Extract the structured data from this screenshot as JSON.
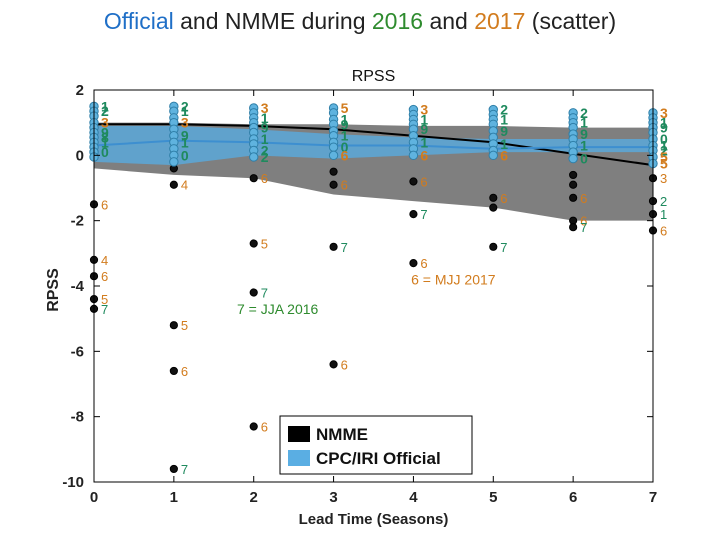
{
  "title": {
    "part1": "Official",
    "part2": " and NMME during ",
    "part3": "2016",
    "part4": " and ",
    "part5": "2017",
    "part6": " (scatter)",
    "colors": {
      "official": "#1f6fc7",
      "y2016": "#2e8b2e",
      "y2017": "#d27c1e",
      "text": "#222222"
    }
  },
  "chart_data": {
    "type": "scatter",
    "title": "RPSS",
    "xlabel": "Lead Time (Seasons)",
    "ylabel": "RPSS",
    "xlim": [
      0,
      7
    ],
    "ylim": [
      -10,
      2
    ],
    "xticks": [
      0,
      1,
      2,
      3,
      4,
      5,
      6,
      7
    ],
    "yticks": [
      -10,
      -8,
      -6,
      -4,
      -2,
      0,
      2
    ],
    "grid": false,
    "legend": {
      "position": "bottom-right",
      "entries": [
        {
          "label": "NMME",
          "color": "#000000"
        },
        {
          "label": "CPC/IRI Official",
          "color": "#5aaee3"
        }
      ]
    },
    "nmme_band": {
      "x": [
        0,
        1,
        2,
        3,
        4,
        5,
        6,
        7
      ],
      "upper": [
        1.0,
        1.0,
        0.95,
        0.95,
        0.9,
        0.9,
        0.85,
        0.85
      ],
      "lower": [
        -0.4,
        -0.6,
        -0.7,
        -1.2,
        -1.4,
        -1.6,
        -2.0,
        -2.0
      ]
    },
    "nmme_median": {
      "x": [
        0,
        1,
        2,
        3,
        4,
        5,
        6,
        7
      ],
      "y": [
        0.95,
        0.95,
        0.9,
        0.8,
        0.6,
        0.4,
        0.05,
        -0.3
      ]
    },
    "official_band": {
      "x": [
        0,
        1,
        2,
        3,
        4,
        5,
        6,
        7
      ],
      "upper": [
        0.9,
        0.9,
        0.8,
        0.65,
        0.55,
        0.5,
        0.5,
        0.5
      ],
      "lower": [
        -0.2,
        -0.3,
        0,
        -0.1,
        0,
        0.1,
        0.1,
        0.1
      ]
    },
    "official_median": {
      "x": [
        0,
        1,
        2,
        3,
        4,
        5,
        6,
        7
      ],
      "y": [
        0.3,
        0.45,
        0.4,
        0.3,
        0.3,
        0.2,
        0.25,
        0.25
      ]
    },
    "series": [
      {
        "name": "NMME",
        "color": "#111111",
        "points": [
          {
            "x": 0,
            "y": -3.2,
            "label": "4"
          },
          {
            "x": 0,
            "y": -3.7,
            "label": "6"
          },
          {
            "x": 0,
            "y": -4.4,
            "label": "5"
          },
          {
            "x": 0,
            "y": -4.7,
            "label": "7"
          },
          {
            "x": 0,
            "y": -1.5,
            "label": "6"
          },
          {
            "x": 1,
            "y": -0.4,
            "label": ""
          },
          {
            "x": 1,
            "y": -0.9,
            "label": "4"
          },
          {
            "x": 1,
            "y": -5.2,
            "label": "5"
          },
          {
            "x": 1,
            "y": -6.6,
            "label": "6"
          },
          {
            "x": 1,
            "y": -9.6,
            "label": "7"
          },
          {
            "x": 2,
            "y": -0.7,
            "label": "6"
          },
          {
            "x": 2,
            "y": -2.7,
            "label": "5"
          },
          {
            "x": 2,
            "y": -4.2,
            "label": "7"
          },
          {
            "x": 2,
            "y": -8.3,
            "label": "6"
          },
          {
            "x": 3,
            "y": -0.5,
            "label": ""
          },
          {
            "x": 3,
            "y": -0.9,
            "label": "6"
          },
          {
            "x": 3,
            "y": -2.8,
            "label": "7"
          },
          {
            "x": 3,
            "y": -6.4,
            "label": "6"
          },
          {
            "x": 4,
            "y": -0.8,
            "label": "6"
          },
          {
            "x": 4,
            "y": -1.8,
            "label": "7"
          },
          {
            "x": 4,
            "y": -3.3,
            "label": "6"
          },
          {
            "x": 5,
            "y": -1.3,
            "label": "6"
          },
          {
            "x": 5,
            "y": -1.6,
            "label": ""
          },
          {
            "x": 5,
            "y": -2.8,
            "label": "7"
          },
          {
            "x": 6,
            "y": -0.6,
            "label": ""
          },
          {
            "x": 6,
            "y": -0.9,
            "label": ""
          },
          {
            "x": 6,
            "y": -1.3,
            "label": "6"
          },
          {
            "x": 6,
            "y": -2.0,
            "label": "6"
          },
          {
            "x": 6,
            "y": -2.2,
            "label": "7"
          },
          {
            "x": 7,
            "y": -0.7,
            "label": "3"
          },
          {
            "x": 7,
            "y": -1.4,
            "label": "2"
          },
          {
            "x": 7,
            "y": -1.8,
            "label": "1"
          },
          {
            "x": 7,
            "y": -2.3,
            "label": "6"
          }
        ]
      },
      {
        "name": "CPC/IRI Official",
        "color": "#5fb3df",
        "points": [
          {
            "x": 0,
            "y": 1.5,
            "label": "1"
          },
          {
            "x": 0,
            "y": 1.35,
            "label": "2"
          },
          {
            "x": 0,
            "y": 1.2,
            "label": ""
          },
          {
            "x": 0,
            "y": 1.0,
            "label": "3"
          },
          {
            "x": 0,
            "y": 0.85,
            "label": ""
          },
          {
            "x": 0,
            "y": 0.7,
            "label": "9"
          },
          {
            "x": 0,
            "y": 0.55,
            "label": "8"
          },
          {
            "x": 0,
            "y": 0.4,
            "label": "1"
          },
          {
            "x": 0,
            "y": 0.25,
            "label": ""
          },
          {
            "x": 0,
            "y": 0.1,
            "label": "0"
          },
          {
            "x": 0,
            "y": -0.05,
            "label": ""
          },
          {
            "x": 1,
            "y": 1.5,
            "label": "2"
          },
          {
            "x": 1,
            "y": 1.35,
            "label": "1"
          },
          {
            "x": 1,
            "y": 1.15,
            "label": ""
          },
          {
            "x": 1,
            "y": 1.0,
            "label": "3"
          },
          {
            "x": 1,
            "y": 0.8,
            "label": ""
          },
          {
            "x": 1,
            "y": 0.6,
            "label": "9"
          },
          {
            "x": 1,
            "y": 0.4,
            "label": "1"
          },
          {
            "x": 1,
            "y": 0.2,
            "label": ""
          },
          {
            "x": 1,
            "y": 0.0,
            "label": "0"
          },
          {
            "x": 1,
            "y": -0.2,
            "label": ""
          },
          {
            "x": 2,
            "y": 1.45,
            "label": "3"
          },
          {
            "x": 2,
            "y": 1.3,
            "label": ""
          },
          {
            "x": 2,
            "y": 1.15,
            "label": "1"
          },
          {
            "x": 2,
            "y": 1.0,
            "label": ""
          },
          {
            "x": 2,
            "y": 0.85,
            "label": "9"
          },
          {
            "x": 2,
            "y": 0.7,
            "label": ""
          },
          {
            "x": 2,
            "y": 0.5,
            "label": "1"
          },
          {
            "x": 2,
            "y": 0.35,
            "label": ""
          },
          {
            "x": 2,
            "y": 0.15,
            "label": "2"
          },
          {
            "x": 2,
            "y": -0.05,
            "label": "2"
          },
          {
            "x": 3,
            "y": 1.45,
            "label": "5"
          },
          {
            "x": 3,
            "y": 1.3,
            "label": ""
          },
          {
            "x": 3,
            "y": 1.1,
            "label": "1"
          },
          {
            "x": 3,
            "y": 0.95,
            "label": "9"
          },
          {
            "x": 3,
            "y": 0.75,
            "label": ""
          },
          {
            "x": 3,
            "y": 0.6,
            "label": "1"
          },
          {
            "x": 3,
            "y": 0.4,
            "label": ""
          },
          {
            "x": 3,
            "y": 0.25,
            "label": "0"
          },
          {
            "x": 3,
            "y": 0.0,
            "label": "6"
          },
          {
            "x": 4,
            "y": 1.4,
            "label": "3"
          },
          {
            "x": 4,
            "y": 1.25,
            "label": ""
          },
          {
            "x": 4,
            "y": 1.1,
            "label": "1"
          },
          {
            "x": 4,
            "y": 0.95,
            "label": ""
          },
          {
            "x": 4,
            "y": 0.8,
            "label": "9"
          },
          {
            "x": 4,
            "y": 0.6,
            "label": ""
          },
          {
            "x": 4,
            "y": 0.4,
            "label": "1"
          },
          {
            "x": 4,
            "y": 0.2,
            "label": ""
          },
          {
            "x": 4,
            "y": 0.0,
            "label": "6"
          },
          {
            "x": 5,
            "y": 1.4,
            "label": "2"
          },
          {
            "x": 5,
            "y": 1.25,
            "label": ""
          },
          {
            "x": 5,
            "y": 1.1,
            "label": "1"
          },
          {
            "x": 5,
            "y": 0.95,
            "label": ""
          },
          {
            "x": 5,
            "y": 0.75,
            "label": "9"
          },
          {
            "x": 5,
            "y": 0.55,
            "label": ""
          },
          {
            "x": 5,
            "y": 0.35,
            "label": "1"
          },
          {
            "x": 5,
            "y": 0.15,
            "label": ""
          },
          {
            "x": 5,
            "y": 0.0,
            "label": "6"
          },
          {
            "x": 6,
            "y": 1.3,
            "label": "2"
          },
          {
            "x": 6,
            "y": 1.15,
            "label": ""
          },
          {
            "x": 6,
            "y": 1.0,
            "label": "1"
          },
          {
            "x": 6,
            "y": 0.85,
            "label": ""
          },
          {
            "x": 6,
            "y": 0.65,
            "label": "9"
          },
          {
            "x": 6,
            "y": 0.5,
            "label": ""
          },
          {
            "x": 6,
            "y": 0.3,
            "label": "1"
          },
          {
            "x": 6,
            "y": 0.1,
            "label": ""
          },
          {
            "x": 6,
            "y": -0.1,
            "label": "0"
          },
          {
            "x": 7,
            "y": 1.3,
            "label": "3"
          },
          {
            "x": 7,
            "y": 1.15,
            "label": ""
          },
          {
            "x": 7,
            "y": 1.0,
            "label": "1"
          },
          {
            "x": 7,
            "y": 0.85,
            "label": "9"
          },
          {
            "x": 7,
            "y": 0.7,
            "label": ""
          },
          {
            "x": 7,
            "y": 0.5,
            "label": "0"
          },
          {
            "x": 7,
            "y": 0.3,
            "label": "1"
          },
          {
            "x": 7,
            "y": 0.15,
            "label": "2"
          },
          {
            "x": 7,
            "y": -0.05,
            "label": "5"
          },
          {
            "x": 7,
            "y": -0.25,
            "label": "5"
          }
        ]
      }
    ],
    "annotations": [
      {
        "text": "6 = MJJ 2017",
        "x": 4.5,
        "y": -3.8,
        "color": "#d27c1e"
      },
      {
        "text": "7 = JJA 2016",
        "x": 2.3,
        "y": -4.7,
        "color": "#2e8b2e"
      }
    ]
  }
}
